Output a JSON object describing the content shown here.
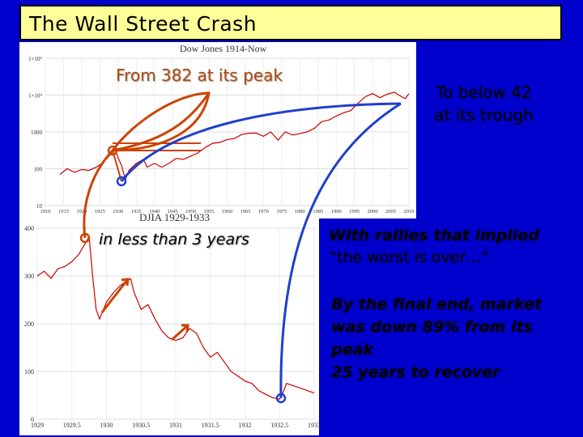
{
  "slide": {
    "title": "The Wall Street Crash",
    "peak_callout": "From 382 at its peak",
    "trough_callout_line1": "To below 42",
    "trough_callout_line2": "at its trough",
    "years_callout": "in less than 3 years",
    "rally_line1": "With rallies that implied",
    "rally_line2": "“the worst is over…”",
    "final_line1": "By the final end, market",
    "final_line2": "was down 89% from its",
    "final_line3": "peak",
    "final_line4": "25 years to recover"
  },
  "colors": {
    "background": "#0000cc",
    "title_bar": "#ffff99",
    "data_line": "#cc0000",
    "arrow_orange": "#cc4400",
    "arrow_blue": "#1f3fcc"
  },
  "chart_data": [
    {
      "type": "line",
      "title": "Dow Jones 1914-Now",
      "x_ticks": [
        "1910",
        "1915",
        "1920",
        "1925",
        "1930",
        "1935",
        "1940",
        "1945",
        "1950",
        "1955",
        "1960",
        "1965",
        "1970",
        "1975",
        "1980",
        "1985",
        "1990",
        "1995",
        "2000",
        "2005",
        "2010"
      ],
      "y_ticks": [
        "10",
        "100",
        "1000",
        "1×10⁴",
        "1×10⁵"
      ],
      "y_scale": "log",
      "xlim": [
        1910,
        2010
      ],
      "ylim": [
        10,
        100000
      ],
      "series": [
        {
          "x": [
            1914,
            1916,
            1918,
            1920,
            1922,
            1924,
            1926,
            1928,
            1929,
            1930,
            1931,
            1932,
            1933,
            1935,
            1937,
            1938,
            1940,
            1942,
            1944,
            1946,
            1948,
            1950,
            1952,
            1954,
            1956,
            1958,
            1960,
            1962,
            1964,
            1966,
            1968,
            1970,
            1972,
            1974,
            1976,
            1978,
            1980,
            1982,
            1984,
            1986,
            1988,
            1990,
            1992,
            1994,
            1996,
            1998,
            2000,
            2002,
            2004,
            2006,
            2008,
            2009,
            2010
          ],
          "y": [
            70,
            100,
            80,
            95,
            90,
            110,
            150,
            250,
            380,
            200,
            120,
            50,
            90,
            140,
            180,
            110,
            140,
            110,
            140,
            190,
            180,
            220,
            270,
            380,
            490,
            520,
            620,
            660,
            850,
            920,
            930,
            760,
            1000,
            600,
            1000,
            820,
            900,
            1000,
            1250,
            1900,
            2100,
            2700,
            3300,
            3800,
            6000,
            9000,
            11000,
            8500,
            10500,
            12000,
            9000,
            8000,
            11000
          ]
        }
      ]
    },
    {
      "type": "line",
      "title": "DJIA 1929-1933",
      "x_ticks": [
        "1929",
        "1929.5",
        "1930",
        "1930.5",
        "1931",
        "1931.5",
        "1932",
        "1932.5",
        "1933"
      ],
      "y_ticks": [
        "0",
        "100",
        "200",
        "300",
        "400"
      ],
      "xlim": [
        1929,
        1933
      ],
      "ylim": [
        0,
        400
      ],
      "series": [
        {
          "x": [
            1929.0,
            1929.1,
            1929.2,
            1929.3,
            1929.4,
            1929.5,
            1929.6,
            1929.7,
            1929.75,
            1929.8,
            1929.85,
            1929.9,
            1930.0,
            1930.1,
            1930.2,
            1930.3,
            1930.35,
            1930.4,
            1930.5,
            1930.6,
            1930.7,
            1930.8,
            1930.9,
            1931.0,
            1931.1,
            1931.2,
            1931.3,
            1931.4,
            1931.5,
            1931.6,
            1931.7,
            1931.8,
            1931.9,
            1932.0,
            1932.1,
            1932.2,
            1932.3,
            1932.4,
            1932.5,
            1932.55,
            1932.6,
            1932.7,
            1932.8,
            1932.9,
            1933.0
          ],
          "y": [
            300,
            310,
            295,
            315,
            320,
            330,
            345,
            370,
            382,
            300,
            230,
            210,
            245,
            265,
            280,
            290,
            294,
            265,
            230,
            240,
            210,
            185,
            170,
            165,
            170,
            190,
            180,
            150,
            130,
            140,
            120,
            100,
            90,
            80,
            75,
            60,
            52,
            45,
            42,
            55,
            75,
            70,
            65,
            60,
            55
          ]
        }
      ]
    }
  ]
}
